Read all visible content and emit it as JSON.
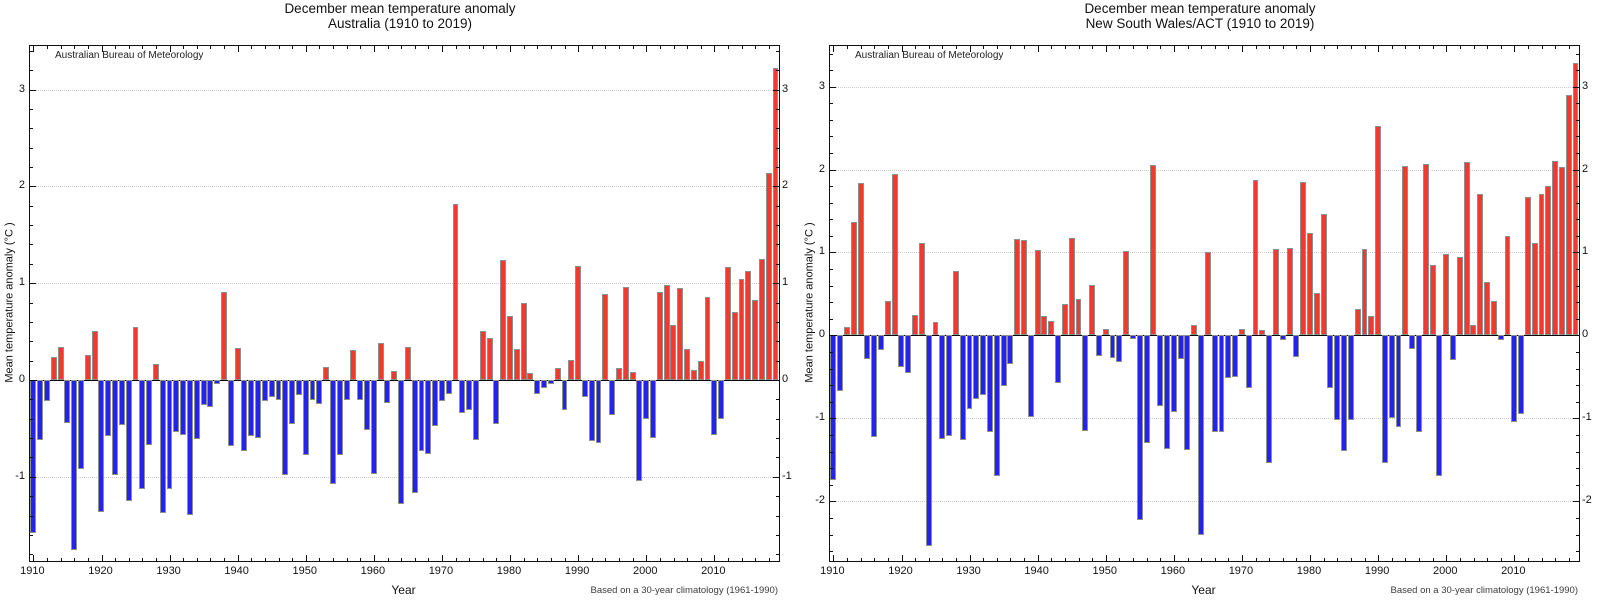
{
  "chart_data": [
    {
      "type": "bar",
      "title": "December mean temperature anomaly",
      "subtitle": "Australia (1910 to 2019)",
      "watermark": "Australian Bureau of Meteorology",
      "xlabel": "Year",
      "ylabel": "Mean temperature anomaly (°C )",
      "note": "Based on a 30-year climatology (1961-1990)",
      "x_start": 1910,
      "x_end": 2019,
      "x_decade_ticks": [
        1910,
        1920,
        1930,
        1940,
        1950,
        1960,
        1970,
        1980,
        1990,
        2000,
        2010
      ],
      "y_ticks": [
        -1,
        0,
        1,
        2,
        3
      ],
      "ylim": [
        -1.87,
        3.45
      ],
      "grid": "dotted-horizontal-at-integers",
      "legend": "none",
      "colors": {
        "positive": "#f1392d",
        "negative": "#2423ee"
      },
      "values": [
        -1.58,
        -0.62,
        -0.22,
        0.24,
        0.34,
        -0.44,
        -1.76,
        -0.92,
        0.26,
        0.51,
        -1.36,
        -0.58,
        -0.98,
        -0.47,
        -1.25,
        0.55,
        -1.13,
        -0.67,
        0.17,
        -1.37,
        -1.13,
        -0.54,
        -0.57,
        -1.39,
        -0.61,
        -0.26,
        -0.28,
        -0.04,
        0.91,
        -0.68,
        0.33,
        -0.73,
        -0.58,
        -0.6,
        -0.22,
        -0.18,
        -0.21,
        -0.98,
        -0.46,
        -0.16,
        -0.78,
        -0.21,
        -0.25,
        0.13,
        -1.07,
        -0.78,
        -0.21,
        0.31,
        -0.21,
        -0.52,
        -0.97,
        0.38,
        -0.24,
        0.09,
        -1.28,
        0.34,
        -1.17,
        -0.73,
        -0.76,
        -0.48,
        -0.22,
        -0.15,
        1.82,
        -0.34,
        -0.31,
        -0.62,
        0.51,
        0.43,
        -0.45,
        1.24,
        0.66,
        0.32,
        0.8,
        0.07,
        -0.14,
        -0.08,
        -0.04,
        0.12,
        -0.31,
        0.21,
        1.18,
        -0.18,
        -0.63,
        -0.65,
        0.89,
        -0.36,
        0.12,
        0.96,
        0.08,
        -1.04,
        -0.4,
        -0.6,
        0.91,
        0.98,
        0.57,
        0.95,
        0.32,
        0.1,
        0.2,
        0.86,
        -0.57,
        -0.4,
        1.17,
        0.7,
        1.04,
        1.13,
        0.83,
        1.25,
        2.14,
        3.22
      ]
    },
    {
      "type": "bar",
      "title": "December mean temperature anomaly",
      "subtitle": "New South Wales/ACT (1910 to 2019)",
      "watermark": "Australian Bureau of Meteorology",
      "xlabel": "Year",
      "ylabel": "Mean temperature anomaly (°C )",
      "note": "Based on a 30-year climatology (1961-1990)",
      "x_start": 1910,
      "x_end": 2019,
      "x_decade_ticks": [
        1910,
        1920,
        1930,
        1940,
        1950,
        1960,
        1970,
        1980,
        1990,
        2000,
        2010
      ],
      "y_ticks": [
        -2,
        -1,
        0,
        1,
        2,
        3
      ],
      "ylim": [
        -2.72,
        3.49
      ],
      "grid": "dotted-horizontal-at-integers",
      "legend": "none",
      "colors": {
        "positive": "#f1392d",
        "negative": "#2423ee"
      },
      "values": [
        -1.74,
        -0.67,
        0.1,
        1.37,
        1.84,
        -0.28,
        -1.23,
        -0.17,
        0.42,
        1.95,
        -0.38,
        -0.45,
        0.25,
        1.11,
        -2.54,
        0.16,
        -1.25,
        -1.21,
        0.78,
        -1.26,
        -0.89,
        -0.77,
        -0.72,
        -1.17,
        -1.69,
        -0.61,
        -0.35,
        1.16,
        1.15,
        -0.98,
        1.03,
        0.24,
        0.18,
        -0.57,
        0.38,
        1.18,
        0.44,
        -1.15,
        0.61,
        -0.25,
        0.08,
        -0.27,
        -0.32,
        1.02,
        -0.04,
        -2.22,
        -1.3,
        2.06,
        -0.85,
        -1.37,
        -0.92,
        -0.28,
        -1.38,
        0.12,
        -2.41,
        1.0,
        -1.16,
        -1.17,
        -0.51,
        -0.5,
        0.08,
        -0.63,
        1.87,
        0.07,
        -1.54,
        1.04,
        -0.06,
        1.05,
        -0.26,
        1.85,
        1.24,
        0.51,
        1.47,
        -0.64,
        -1.02,
        -1.39,
        -1.02,
        0.32,
        1.04,
        0.24,
        2.53,
        -1.54,
        -1.0,
        -1.1,
        2.04,
        -0.16,
        -1.17,
        2.07,
        0.85,
        -1.69,
        0.98,
        -0.3,
        0.94,
        2.09,
        0.13,
        1.71,
        0.65,
        0.42,
        -0.06,
        1.2,
        -1.05,
        -0.95,
        1.67,
        1.11,
        1.7,
        1.8,
        2.1,
        2.03,
        2.9,
        3.28
      ]
    }
  ]
}
